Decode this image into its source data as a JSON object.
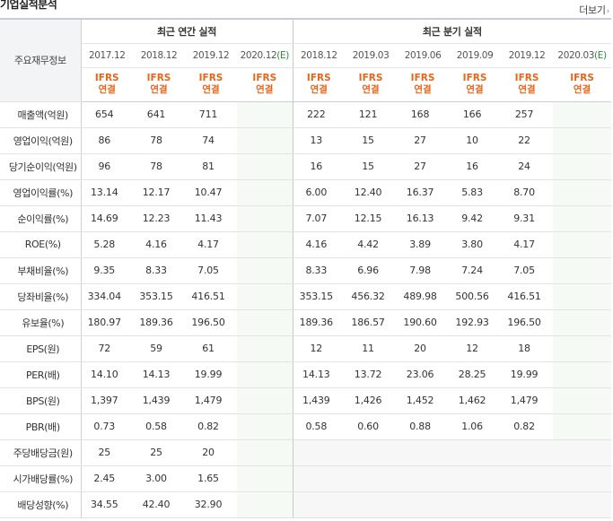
{
  "header": {
    "title": "기업실적분석",
    "more_label": "더보기",
    "more_arrow": "›"
  },
  "table": {
    "label_header": "주요재무정보",
    "annual_group_label": "최근 연간 실적",
    "quarter_group_label": "최근 분기 실적",
    "annual_periods": [
      "2017.12",
      "2018.12",
      "2019.12",
      "2020.12"
    ],
    "annual_estimate_suffix": "(E)",
    "quarter_periods": [
      "2018.12",
      "2019.03",
      "2019.06",
      "2019.09",
      "2019.12",
      "2020.03"
    ],
    "quarter_estimate_suffix": "(E)",
    "basis_line1": "IFRS",
    "basis_line2": "연결",
    "rows": [
      {
        "label": "매출액(억원)",
        "annual": [
          "654",
          "641",
          "711",
          ""
        ],
        "quarter": [
          "222",
          "121",
          "168",
          "166",
          "257",
          ""
        ]
      },
      {
        "label": "영업이익(억원)",
        "annual": [
          "86",
          "78",
          "74",
          ""
        ],
        "quarter": [
          "13",
          "15",
          "27",
          "10",
          "22",
          ""
        ]
      },
      {
        "label": "당기순이익(억원)",
        "annual": [
          "96",
          "78",
          "81",
          ""
        ],
        "quarter": [
          "16",
          "15",
          "27",
          "16",
          "24",
          ""
        ]
      },
      {
        "label": "영업이익률(%)",
        "annual": [
          "13.14",
          "12.17",
          "10.47",
          ""
        ],
        "quarter": [
          "6.00",
          "12.40",
          "16.37",
          "5.83",
          "8.70",
          ""
        ]
      },
      {
        "label": "순이익률(%)",
        "annual": [
          "14.69",
          "12.23",
          "11.43",
          ""
        ],
        "quarter": [
          "7.07",
          "12.15",
          "16.13",
          "9.42",
          "9.31",
          ""
        ]
      },
      {
        "label": "ROE(%)",
        "annual": [
          "5.28",
          "4.16",
          "4.17",
          ""
        ],
        "quarter": [
          "4.16",
          "4.42",
          "3.89",
          "3.80",
          "4.17",
          ""
        ]
      },
      {
        "label": "부채비율(%)",
        "annual": [
          "9.35",
          "8.33",
          "7.05",
          ""
        ],
        "quarter": [
          "8.33",
          "6.96",
          "7.98",
          "7.24",
          "7.05",
          ""
        ]
      },
      {
        "label": "당좌비율(%)",
        "annual": [
          "334.04",
          "353.15",
          "416.51",
          ""
        ],
        "quarter": [
          "353.15",
          "456.32",
          "489.98",
          "500.56",
          "416.51",
          ""
        ]
      },
      {
        "label": "유보율(%)",
        "annual": [
          "180.97",
          "189.36",
          "196.50",
          ""
        ],
        "quarter": [
          "189.36",
          "186.57",
          "190.60",
          "192.93",
          "196.50",
          ""
        ]
      },
      {
        "label": "EPS(원)",
        "annual": [
          "72",
          "59",
          "61",
          ""
        ],
        "quarter": [
          "12",
          "11",
          "20",
          "12",
          "18",
          ""
        ]
      },
      {
        "label": "PER(배)",
        "annual": [
          "14.10",
          "14.13",
          "19.99",
          ""
        ],
        "quarter": [
          "14.13",
          "13.72",
          "23.06",
          "28.25",
          "19.99",
          ""
        ]
      },
      {
        "label": "BPS(원)",
        "annual": [
          "1,397",
          "1,439",
          "1,479",
          ""
        ],
        "quarter": [
          "1,439",
          "1,426",
          "1,452",
          "1,462",
          "1,479",
          ""
        ]
      },
      {
        "label": "PBR(배)",
        "annual": [
          "0.73",
          "0.58",
          "0.82",
          ""
        ],
        "quarter": [
          "0.58",
          "0.60",
          "0.88",
          "1.06",
          "0.82",
          ""
        ]
      },
      {
        "label": "주당배당금(원)",
        "annual": [
          "25",
          "25",
          "20",
          ""
        ],
        "quarter": [
          "",
          "",
          "",
          "",
          "",
          ""
        ]
      },
      {
        "label": "시가배당률(%)",
        "annual": [
          "2.45",
          "3.00",
          "1.65",
          ""
        ],
        "quarter": [
          "",
          "",
          "",
          "",
          "",
          ""
        ]
      },
      {
        "label": "배당성향(%)",
        "annual": [
          "34.55",
          "42.40",
          "32.90",
          ""
        ],
        "quarter": [
          "",
          "",
          "",
          "",
          "",
          ""
        ]
      }
    ]
  },
  "colors": {
    "ifrs_orange": "#e8661c",
    "estimate_green": "#2e8b3c",
    "header_gray": "#f3f4f6"
  }
}
